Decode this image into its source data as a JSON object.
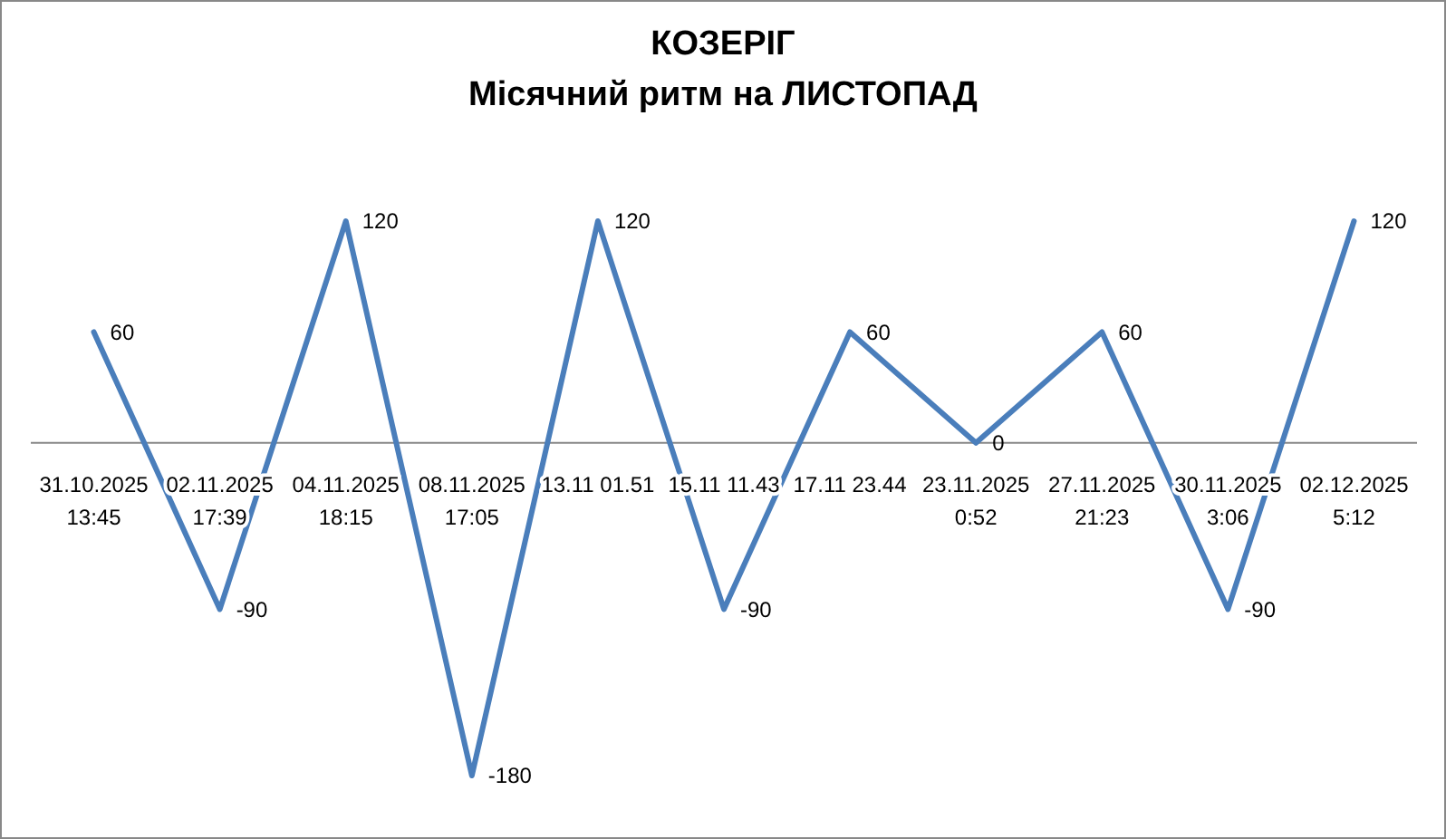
{
  "chart_data": {
    "type": "line",
    "title": "КОЗЕРІГ\nМісячний ритм на ЛИСТОПАД",
    "categories": [
      "31.10.2025\n13:45",
      "02.11.2025\n17:39",
      "04.11.2025\n18:15",
      "08.11.2025\n17:05",
      "13.11 01.51",
      "15.11 11.43",
      "17.11 23.44",
      "23.11.2025\n0:52",
      "27.11.2025\n21:23",
      "30.11.2025\n3:06",
      "02.12.2025\n5:12"
    ],
    "series": [
      {
        "color": "#4a7ebb",
        "values": [
          60,
          -90,
          120,
          -180,
          120,
          -90,
          60,
          0,
          60,
          -90,
          120
        ]
      }
    ],
    "data_labels": true,
    "marker": "none",
    "line_style": "solid"
  }
}
